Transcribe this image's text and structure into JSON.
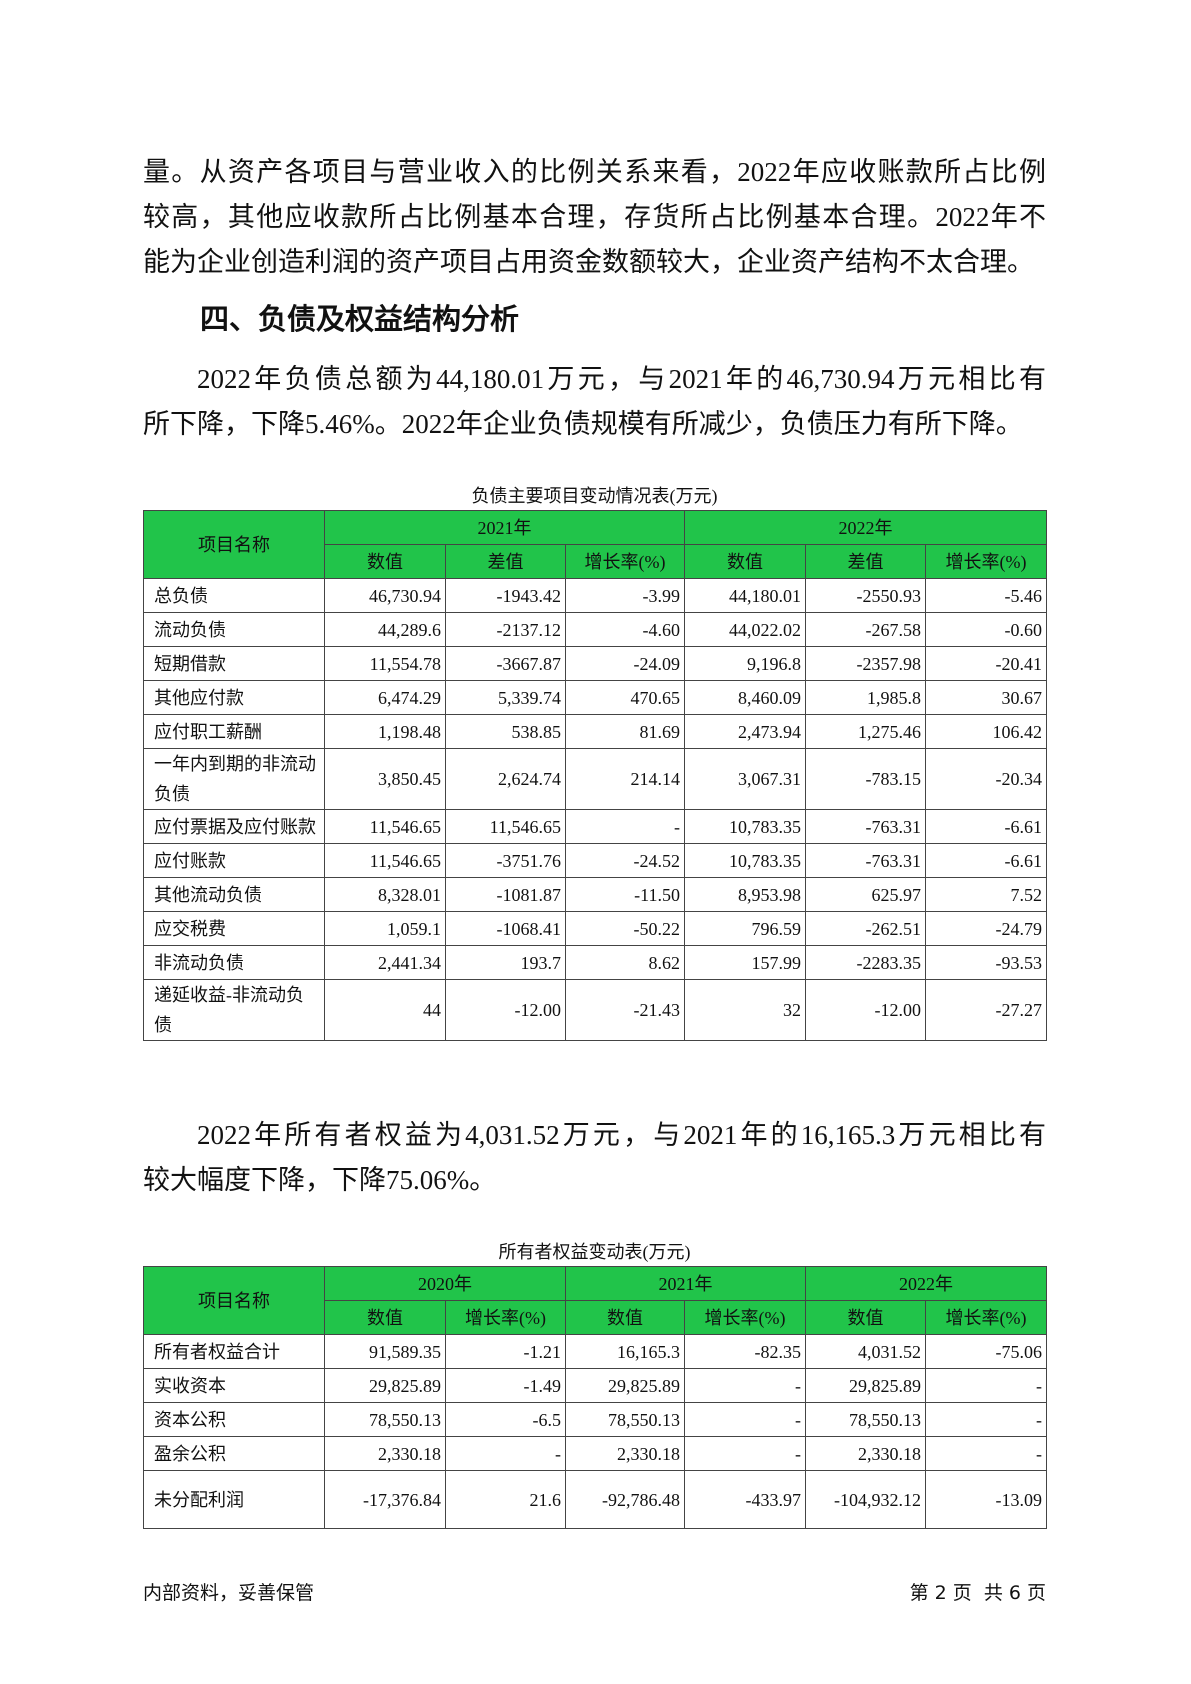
{
  "paragraphs": [
    {
      "lines": [
        "量。从资产各项目与营业收入的比例关系来看，2022年应收账款所占比例",
        "较高，其他应收款所占比例基本合理，存货所占比例基本合理。2022年不",
        "能为企业创造利润的资产项目占用资金数额较大，企业资产结构不太合理。"
      ]
    },
    {
      "lines": [
        "2022年负债总额为44,180.01万元，与2021年的46,730.94万元相比有",
        "所下降，下降5.46%。2022年企业负债规模有所减少，负债压力有所下降。"
      ]
    },
    {
      "lines": [
        "2022年所有者权益为4,031.52万元，与2021年的16,165.3万元相比有",
        "较大幅度下降，下降75.06%。"
      ]
    }
  ],
  "heading": "四、负债及权益结构分析",
  "tables": [
    {
      "caption": "负债主要项目变动情况表(万元)",
      "name_header": "项目名称",
      "groups": [
        "2021年",
        "2022年"
      ],
      "subheaders": [
        "数值",
        "差值",
        "增长率(%)",
        "数值",
        "差值",
        "增长率(%)"
      ],
      "rows": [
        [
          "总负债",
          "46,730.94",
          "-1943.42",
          "-3.99",
          "44,180.01",
          "-2550.93",
          "-5.46"
        ],
        [
          "流动负债",
          "44,289.6",
          "-2137.12",
          "-4.60",
          "44,022.02",
          "-267.58",
          "-0.60"
        ],
        [
          "短期借款",
          "11,554.78",
          "-3667.87",
          "-24.09",
          "9,196.8",
          "-2357.98",
          "-20.41"
        ],
        [
          "其他应付款",
          "6,474.29",
          "5,339.74",
          "470.65",
          "8,460.09",
          "1,985.8",
          "30.67"
        ],
        [
          "应付职工薪酬",
          "1,198.48",
          "538.85",
          "81.69",
          "2,473.94",
          "1,275.46",
          "106.42"
        ],
        [
          "一年内到期的非流动负债",
          "3,850.45",
          "2,624.74",
          "214.14",
          "3,067.31",
          "-783.15",
          "-20.34"
        ],
        [
          "应付票据及应付账款",
          "11,546.65",
          "11,546.65",
          "-",
          "10,783.35",
          "-763.31",
          "-6.61"
        ],
        [
          "应付账款",
          "11,546.65",
          "-3751.76",
          "-24.52",
          "10,783.35",
          "-763.31",
          "-6.61"
        ],
        [
          "其他流动负债",
          "8,328.01",
          "-1081.87",
          "-11.50",
          "8,953.98",
          "625.97",
          "7.52"
        ],
        [
          "应交税费",
          "1,059.1",
          "-1068.41",
          "-50.22",
          "796.59",
          "-262.51",
          "-24.79"
        ],
        [
          "非流动负债",
          "2,441.34",
          "193.7",
          "8.62",
          "157.99",
          "-2283.35",
          "-93.53"
        ],
        [
          "递延收益-非流动负债",
          "44",
          "-12.00",
          "-21.43",
          "32",
          "-12.00",
          "-27.27"
        ]
      ]
    },
    {
      "caption": "所有者权益变动表(万元)",
      "name_header": "项目名称",
      "groups": [
        "2020年",
        "2021年",
        "2022年"
      ],
      "subheaders": [
        "数值",
        "增长率(%)",
        "数值",
        "增长率(%)",
        "数值",
        "增长率(%)"
      ],
      "rows": [
        [
          "所有者权益合计",
          "91,589.35",
          "-1.21",
          "16,165.3",
          "-82.35",
          "4,031.52",
          "-75.06"
        ],
        [
          "实收资本",
          "29,825.89",
          "-1.49",
          "29,825.89",
          "-",
          "29,825.89",
          "-"
        ],
        [
          "资本公积",
          "78,550.13",
          "-6.5",
          "78,550.13",
          "-",
          "78,550.13",
          "-"
        ],
        [
          "盈余公积",
          "2,330.18",
          "-",
          "2,330.18",
          "-",
          "2,330.18",
          "-"
        ],
        [
          "未分配利润",
          "-17,376.84",
          "21.6",
          "-92,786.48",
          "-433.97",
          "-104,932.12",
          "-13.09"
        ]
      ]
    }
  ],
  "footer": {
    "left": "内部资料，妥善保管",
    "right": "第 2 页  共 6 页"
  }
}
